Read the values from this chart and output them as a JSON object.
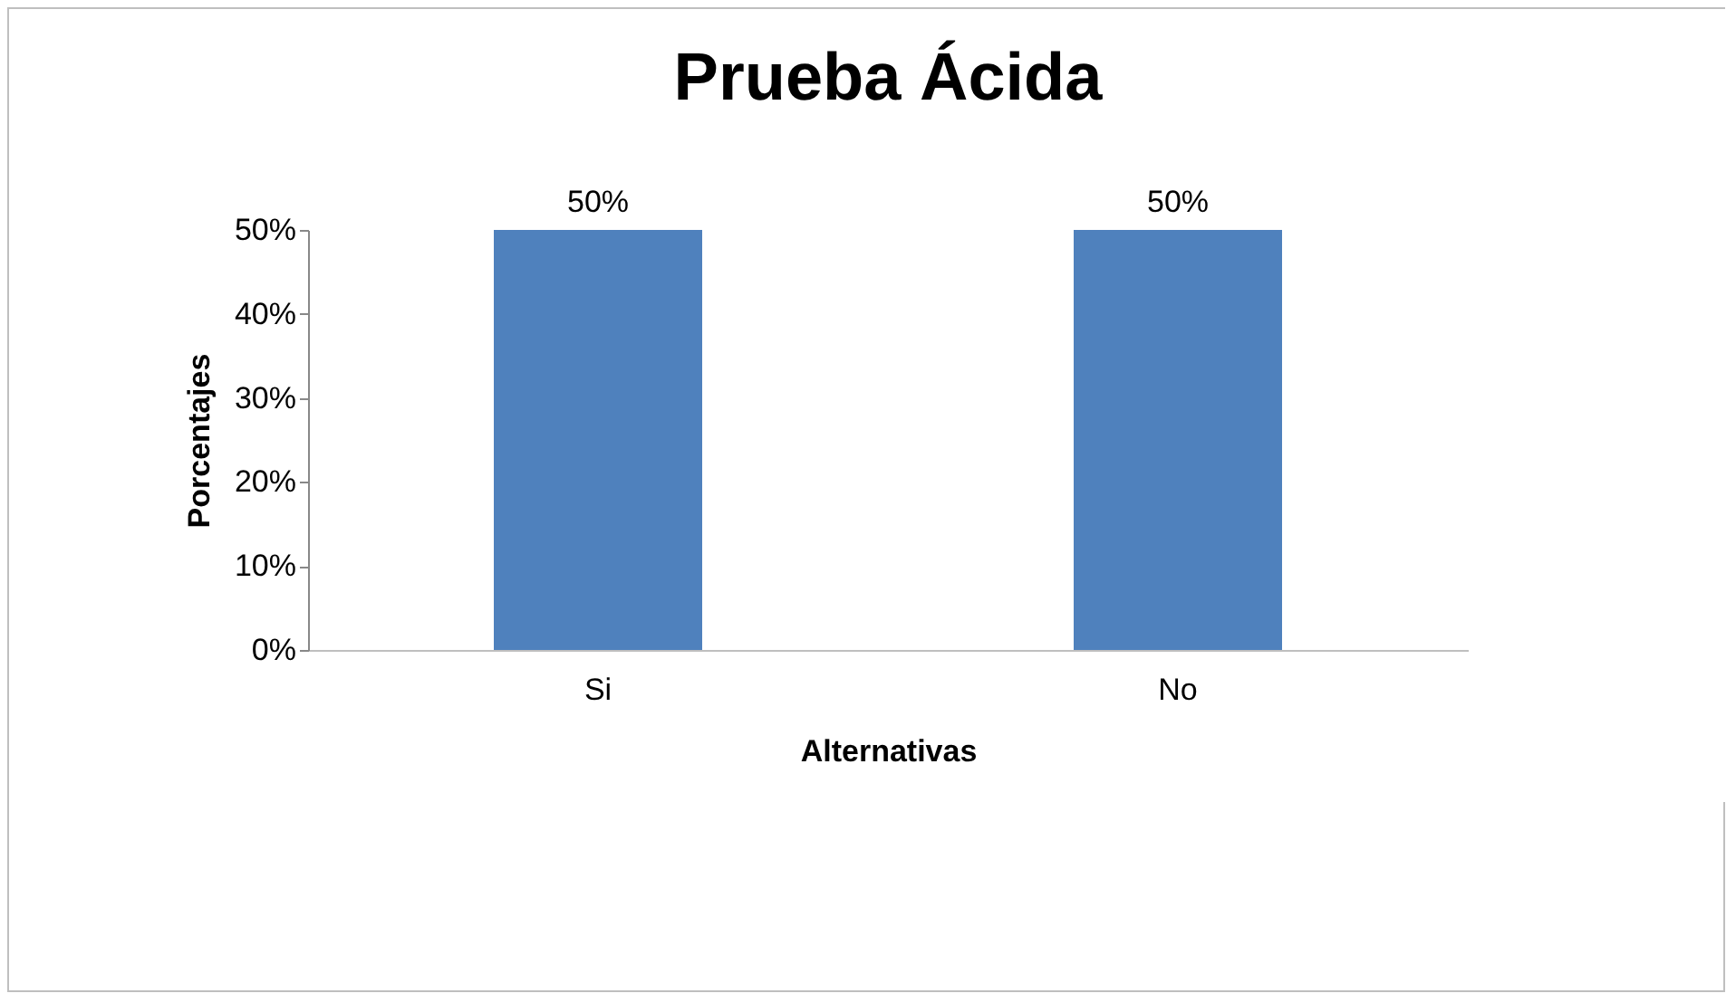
{
  "chart_data": {
    "type": "bar",
    "title": "Prueba Ácida",
    "xlabel": "Alternativas",
    "ylabel": "Porcentajes",
    "categories": [
      "Si",
      "No"
    ],
    "values": [
      50,
      50
    ],
    "color": "#4f81bd",
    "value_labels": [
      "50%",
      "50%"
    ],
    "ylim": [
      0,
      50
    ],
    "yticks": [
      {
        "value": 0,
        "label": "0%"
      },
      {
        "value": 10,
        "label": "10%"
      },
      {
        "value": 20,
        "label": "20%"
      },
      {
        "value": 30,
        "label": "30%"
      },
      {
        "value": 40,
        "label": "40%"
      },
      {
        "value": 50,
        "label": "50%"
      }
    ],
    "grid": false
  }
}
